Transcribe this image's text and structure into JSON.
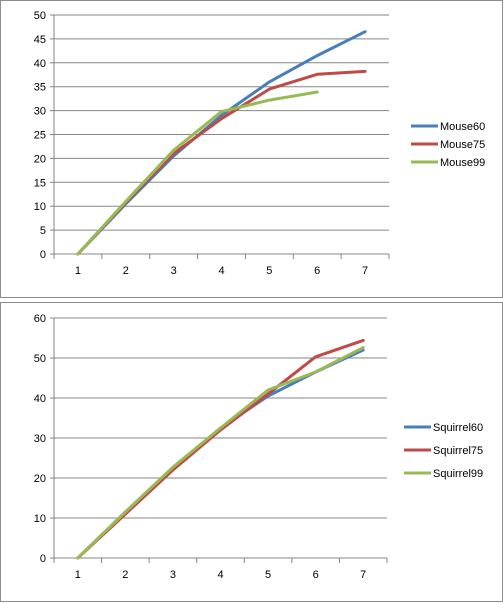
{
  "chart_data": [
    {
      "type": "line",
      "x": [
        1,
        2,
        3,
        4,
        5,
        6,
        7
      ],
      "ylim": [
        0,
        50
      ],
      "yticks": [
        0,
        5,
        10,
        15,
        20,
        25,
        30,
        35,
        40,
        45,
        50
      ],
      "grid": true,
      "legend": "right",
      "series": [
        {
          "name": "Mouse60",
          "color": "#4a7ebb",
          "values": [
            0,
            10.5,
            20.5,
            29,
            36,
            41.5,
            46.5
          ]
        },
        {
          "name": "Mouse75",
          "color": "#be4b48",
          "values": [
            0,
            10.8,
            21,
            28.3,
            34.5,
            37.6,
            38.2
          ]
        },
        {
          "name": "Mouse99",
          "color": "#98b954",
          "values": [
            0,
            11,
            21.7,
            29.8,
            32.2,
            33.9,
            null
          ]
        }
      ]
    },
    {
      "type": "line",
      "x": [
        1,
        2,
        3,
        4,
        5,
        6,
        7
      ],
      "ylim": [
        0,
        60
      ],
      "yticks": [
        0,
        10,
        20,
        30,
        40,
        50,
        60
      ],
      "grid": true,
      "legend": "right",
      "series": [
        {
          "name": "Squirrel60",
          "color": "#4a7ebb",
          "values": [
            0,
            11.5,
            22.5,
            32.5,
            40.5,
            46.5,
            52
          ]
        },
        {
          "name": "Squirrel75",
          "color": "#be4b48",
          "values": [
            0,
            11,
            22,
            32,
            41,
            50.3,
            54.4
          ]
        },
        {
          "name": "Squirrel99",
          "color": "#98b954",
          "values": [
            0,
            11.5,
            22.7,
            32.5,
            42,
            46.5,
            52.6
          ]
        }
      ]
    }
  ]
}
